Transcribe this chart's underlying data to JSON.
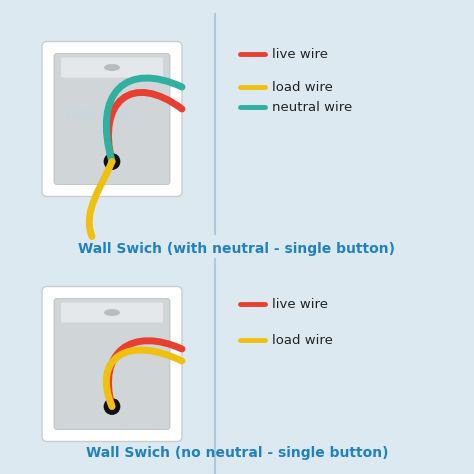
{
  "bg_color": "#dde9f1",
  "title1": "Wall Swich (with neutral - single button)",
  "title2": "Wall Swich (no neutral - single button)",
  "title_color": "#2080c0",
  "live_color": "#e84030",
  "load_color": "#f0c010",
  "neutral_color": "#30b0a0",
  "legend1": [
    {
      "color": "#e84030",
      "label": "live wire"
    },
    {
      "color": "#f0c010",
      "label": "load wire"
    },
    {
      "color": "#30b0a0",
      "label": "neutral wire"
    }
  ],
  "legend2": [
    {
      "color": "#e84030",
      "label": "live wire"
    },
    {
      "color": "#f0c010",
      "label": "load wire"
    }
  ],
  "watermark": "HIKELIGHT",
  "watermark_color": "#c5d8e2",
  "divider_color": "#b0c8d8",
  "box_outer_color": "#e8e8e8",
  "box_inner_color": "#d0d5d8",
  "box_highlight_color": "#e5e8ea",
  "dot_color": "#111111"
}
